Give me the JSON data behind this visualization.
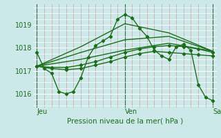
{
  "title": "Pression niveau de la mer( hPa )",
  "bg_color": "#cce8e8",
  "plot_bg_color": "#cce8e8",
  "grid_color_major": "#ffffff",
  "grid_color_minor": "#c8a0a0",
  "line_color": "#1a6e1a",
  "ylim": [
    1015.4,
    1019.9
  ],
  "yticks": [
    1016,
    1017,
    1018,
    1019
  ],
  "x_jeu": 0,
  "x_ven": 48,
  "x_sam": 96,
  "xlim": [
    -2,
    98
  ],
  "series": [
    [
      0,
      1017.8,
      4,
      1017.1,
      8,
      1016.9,
      12,
      1016.1,
      16,
      1016.0,
      20,
      1016.1,
      24,
      1016.7,
      28,
      1017.6,
      32,
      1018.1,
      36,
      1018.3,
      40,
      1018.5,
      44,
      1019.25,
      48,
      1019.45,
      52,
      1019.3,
      56,
      1018.85,
      60,
      1018.5,
      64,
      1017.9,
      68,
      1017.65,
      72,
      1017.5,
      76,
      1018.05,
      80,
      1018.15,
      84,
      1017.9,
      88,
      1016.4,
      92,
      1015.85,
      96,
      1015.7
    ],
    [
      0,
      1017.2,
      8,
      1017.1,
      16,
      1017.05,
      24,
      1017.1,
      32,
      1017.25,
      40,
      1017.4,
      48,
      1017.6,
      56,
      1017.75,
      64,
      1017.85,
      72,
      1017.8,
      80,
      1017.75,
      88,
      1017.7,
      96,
      1017.65
    ],
    [
      0,
      1017.2,
      8,
      1017.15,
      16,
      1017.15,
      24,
      1017.25,
      32,
      1017.4,
      40,
      1017.6,
      48,
      1017.8,
      56,
      1017.95,
      64,
      1018.05,
      72,
      1018.1,
      80,
      1018.05,
      88,
      1017.95,
      96,
      1017.8
    ],
    [
      0,
      1017.2,
      24,
      1017.5,
      48,
      1017.9,
      72,
      1018.2,
      96,
      1017.85
    ],
    [
      0,
      1017.2,
      24,
      1017.8,
      48,
      1018.35,
      72,
      1018.5,
      96,
      1017.85
    ],
    [
      0,
      1017.2,
      24,
      1018.05,
      48,
      1019.05,
      72,
      1018.65,
      96,
      1017.85
    ]
  ],
  "markers": [
    true,
    true,
    true,
    false,
    false,
    false
  ]
}
